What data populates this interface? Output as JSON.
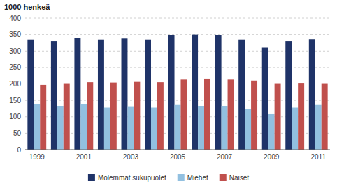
{
  "chart_data": {
    "type": "bar",
    "ylabel": "1000 henkeä",
    "categories": [
      "1999",
      null,
      "2001",
      null,
      "2003",
      null,
      "2005",
      null,
      "2007",
      null,
      "2009",
      null,
      "2011"
    ],
    "series": [
      {
        "name": "Molemmat sukupuolet",
        "color": "#1f3368",
        "values": [
          335,
          330,
          340,
          335,
          338,
          335,
          348,
          350,
          348,
          335,
          310,
          330,
          336
        ]
      },
      {
        "name": "Miehet",
        "color": "#92c0e0",
        "values": [
          138,
          132,
          138,
          128,
          130,
          128,
          136,
          133,
          132,
          123,
          108,
          128,
          136
        ]
      },
      {
        "name": "Naiset",
        "color": "#c0504d",
        "values": [
          197,
          202,
          205,
          204,
          206,
          205,
          213,
          216,
          213,
          210,
          202,
          203,
          202
        ]
      }
    ],
    "ylim": [
      0,
      400
    ],
    "yticks": [
      0,
      50,
      100,
      150,
      200,
      250,
      300,
      350,
      400
    ],
    "grid": true,
    "legend": "bottom"
  }
}
